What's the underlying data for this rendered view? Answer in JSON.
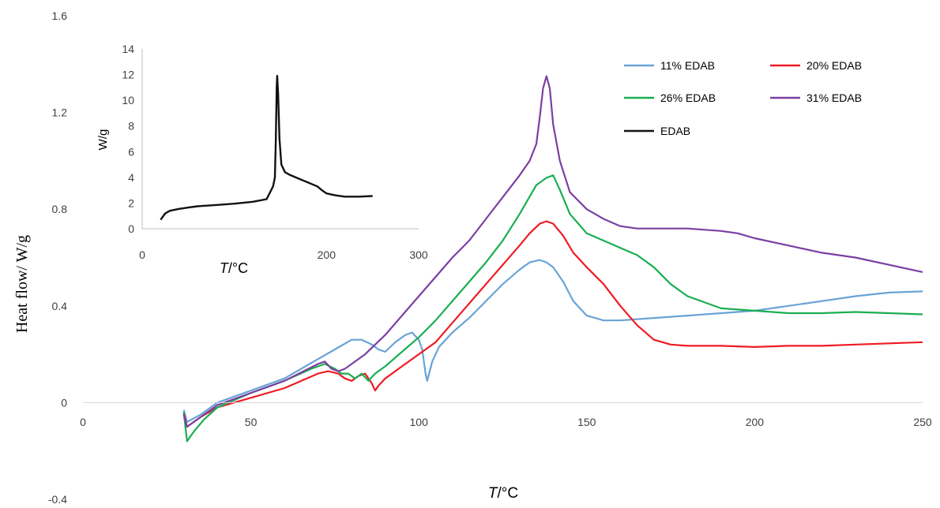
{
  "chart_data": [
    {
      "type": "line",
      "xlabel_parts": [
        "T",
        "/°C"
      ],
      "ylabel": "Heat flow/ W/g",
      "xlim": [
        0,
        250
      ],
      "ylim": [
        -0.4,
        1.6
      ],
      "x_ticks": [
        0,
        50,
        100,
        150,
        200,
        250
      ],
      "y_ticks": [
        -0.4,
        0,
        0.4,
        0.8,
        1.2,
        1.6
      ],
      "y_tick_labels": [
        "-0.4",
        "0",
        "0.4",
        "0.8",
        "1.2",
        "1.6"
      ],
      "grid": false,
      "legend_entries": [
        "11% EDAB",
        "20% EDAB",
        "26% EDAB",
        "31% EDAB",
        "EDAB"
      ],
      "series": [
        {
          "name": "11% EDAB",
          "color": "#6aa3d5",
          "points": [
            [
              30,
              -0.03
            ],
            [
              31,
              -0.08
            ],
            [
              35,
              -0.05
            ],
            [
              40,
              0.0
            ],
            [
              50,
              0.05
            ],
            [
              60,
              0.1
            ],
            [
              70,
              0.18
            ],
            [
              75,
              0.22
            ],
            [
              80,
              0.26
            ],
            [
              83,
              0.26
            ],
            [
              86,
              0.24
            ],
            [
              88,
              0.22
            ],
            [
              90,
              0.21
            ],
            [
              93,
              0.25
            ],
            [
              96,
              0.28
            ],
            [
              98,
              0.29
            ],
            [
              100,
              0.26
            ],
            [
              101,
              0.22
            ],
            [
              102,
              0.12
            ],
            [
              102.5,
              0.09
            ],
            [
              104,
              0.17
            ],
            [
              106,
              0.23
            ],
            [
              110,
              0.29
            ],
            [
              115,
              0.35
            ],
            [
              120,
              0.42
            ],
            [
              125,
              0.49
            ],
            [
              130,
              0.55
            ],
            [
              133,
              0.58
            ],
            [
              136,
              0.59
            ],
            [
              138,
              0.58
            ],
            [
              140,
              0.56
            ],
            [
              143,
              0.5
            ],
            [
              146,
              0.42
            ],
            [
              150,
              0.36
            ],
            [
              155,
              0.34
            ],
            [
              160,
              0.34
            ],
            [
              170,
              0.35
            ],
            [
              180,
              0.36
            ],
            [
              190,
              0.37
            ],
            [
              200,
              0.38
            ],
            [
              210,
              0.4
            ],
            [
              220,
              0.42
            ],
            [
              230,
              0.44
            ],
            [
              240,
              0.455
            ],
            [
              250,
              0.46
            ]
          ]
        },
        {
          "name": "20% EDAB",
          "color": "#ee1b24",
          "points": [
            [
              30,
              -0.04
            ],
            [
              31,
              -0.1
            ],
            [
              35,
              -0.06
            ],
            [
              40,
              -0.02
            ],
            [
              50,
              0.02
            ],
            [
              60,
              0.06
            ],
            [
              70,
              0.12
            ],
            [
              73,
              0.13
            ],
            [
              76,
              0.12
            ],
            [
              78,
              0.1
            ],
            [
              80,
              0.09
            ],
            [
              82,
              0.11
            ],
            [
              84,
              0.12
            ],
            [
              86,
              0.08
            ],
            [
              87,
              0.05
            ],
            [
              88,
              0.07
            ],
            [
              90,
              0.1
            ],
            [
              95,
              0.15
            ],
            [
              100,
              0.2
            ],
            [
              105,
              0.25
            ],
            [
              110,
              0.33
            ],
            [
              115,
              0.41
            ],
            [
              120,
              0.49
            ],
            [
              125,
              0.57
            ],
            [
              130,
              0.65
            ],
            [
              133,
              0.7
            ],
            [
              136,
              0.74
            ],
            [
              138,
              0.75
            ],
            [
              140,
              0.74
            ],
            [
              143,
              0.69
            ],
            [
              146,
              0.62
            ],
            [
              150,
              0.56
            ],
            [
              155,
              0.49
            ],
            [
              160,
              0.4
            ],
            [
              165,
              0.32
            ],
            [
              170,
              0.26
            ],
            [
              175,
              0.24
            ],
            [
              180,
              0.235
            ],
            [
              190,
              0.235
            ],
            [
              200,
              0.23
            ],
            [
              210,
              0.235
            ],
            [
              220,
              0.235
            ],
            [
              230,
              0.24
            ],
            [
              240,
              0.245
            ],
            [
              250,
              0.25
            ]
          ]
        },
        {
          "name": "26% EDAB",
          "color": "#1aae52",
          "points": [
            [
              30,
              -0.04
            ],
            [
              31,
              -0.16
            ],
            [
              33,
              -0.12
            ],
            [
              36,
              -0.07
            ],
            [
              40,
              -0.02
            ],
            [
              50,
              0.04
            ],
            [
              60,
              0.09
            ],
            [
              68,
              0.14
            ],
            [
              72,
              0.16
            ],
            [
              75,
              0.14
            ],
            [
              77,
              0.12
            ],
            [
              79,
              0.12
            ],
            [
              81,
              0.1
            ],
            [
              83,
              0.12
            ],
            [
              85,
              0.09
            ],
            [
              87,
              0.12
            ],
            [
              90,
              0.15
            ],
            [
              95,
              0.21
            ],
            [
              100,
              0.27
            ],
            [
              105,
              0.34
            ],
            [
              110,
              0.42
            ],
            [
              115,
              0.5
            ],
            [
              120,
              0.58
            ],
            [
              125,
              0.67
            ],
            [
              130,
              0.78
            ],
            [
              135,
              0.9
            ],
            [
              138,
              0.93
            ],
            [
              140,
              0.94
            ],
            [
              142,
              0.88
            ],
            [
              145,
              0.78
            ],
            [
              150,
              0.7
            ],
            [
              155,
              0.67
            ],
            [
              160,
              0.64
            ],
            [
              165,
              0.61
            ],
            [
              170,
              0.56
            ],
            [
              175,
              0.49
            ],
            [
              180,
              0.44
            ],
            [
              190,
              0.39
            ],
            [
              200,
              0.38
            ],
            [
              210,
              0.37
            ],
            [
              220,
              0.37
            ],
            [
              230,
              0.375
            ],
            [
              240,
              0.37
            ],
            [
              250,
              0.365
            ]
          ]
        },
        {
          "name": "31% EDAB",
          "color": "#7b3fa3",
          "points": [
            [
              30,
              -0.05
            ],
            [
              31,
              -0.1
            ],
            [
              35,
              -0.06
            ],
            [
              40,
              -0.01
            ],
            [
              50,
              0.04
            ],
            [
              60,
              0.09
            ],
            [
              70,
              0.16
            ],
            [
              72,
              0.17
            ],
            [
              74,
              0.14
            ],
            [
              76,
              0.13
            ],
            [
              78,
              0.14
            ],
            [
              80,
              0.16
            ],
            [
              84,
              0.2
            ],
            [
              90,
              0.28
            ],
            [
              95,
              0.36
            ],
            [
              100,
              0.44
            ],
            [
              105,
              0.52
            ],
            [
              110,
              0.6
            ],
            [
              115,
              0.67
            ],
            [
              120,
              0.76
            ],
            [
              125,
              0.85
            ],
            [
              130,
              0.94
            ],
            [
              133,
              1.0
            ],
            [
              135,
              1.07
            ],
            [
              136,
              1.18
            ],
            [
              137,
              1.3
            ],
            [
              138,
              1.35
            ],
            [
              139,
              1.3
            ],
            [
              140,
              1.15
            ],
            [
              142,
              1.0
            ],
            [
              145,
              0.87
            ],
            [
              150,
              0.8
            ],
            [
              155,
              0.76
            ],
            [
              160,
              0.73
            ],
            [
              165,
              0.72
            ],
            [
              170,
              0.72
            ],
            [
              180,
              0.72
            ],
            [
              190,
              0.71
            ],
            [
              195,
              0.7
            ],
            [
              200,
              0.68
            ],
            [
              210,
              0.65
            ],
            [
              220,
              0.62
            ],
            [
              230,
              0.6
            ],
            [
              240,
              0.57
            ],
            [
              250,
              0.54
            ]
          ]
        }
      ]
    },
    {
      "type": "line",
      "inset": true,
      "xlabel_parts": [
        "T",
        "/°C"
      ],
      "ylabel": "W/g",
      "xlim": [
        0,
        300
      ],
      "ylim": [
        0,
        14
      ],
      "x_ticks": [
        0,
        100,
        200,
        300
      ],
      "x_tick_labels": [
        "0",
        "",
        "200",
        "300"
      ],
      "y_ticks": [
        0,
        2,
        4,
        6,
        8,
        10,
        12,
        14
      ],
      "grid": false,
      "series": [
        {
          "name": "EDAB",
          "color": "#111111",
          "points": [
            [
              20,
              0.7
            ],
            [
              22,
              0.9
            ],
            [
              25,
              1.2
            ],
            [
              30,
              1.4
            ],
            [
              40,
              1.55
            ],
            [
              50,
              1.65
            ],
            [
              60,
              1.75
            ],
            [
              80,
              1.85
            ],
            [
              100,
              1.95
            ],
            [
              120,
              2.1
            ],
            [
              135,
              2.3
            ],
            [
              140,
              3.0
            ],
            [
              142,
              3.3
            ],
            [
              144,
              4.0
            ],
            [
              145,
              7.0
            ],
            [
              146,
              11.0
            ],
            [
              146.5,
              11.9
            ],
            [
              147.5,
              10.5
            ],
            [
              149,
              7.0
            ],
            [
              151,
              5.0
            ],
            [
              155,
              4.4
            ],
            [
              160,
              4.2
            ],
            [
              170,
              3.9
            ],
            [
              180,
              3.6
            ],
            [
              190,
              3.3
            ],
            [
              195,
              3.0
            ],
            [
              200,
              2.75
            ],
            [
              210,
              2.6
            ],
            [
              220,
              2.5
            ],
            [
              235,
              2.5
            ],
            [
              250,
              2.55
            ]
          ]
        }
      ]
    }
  ]
}
